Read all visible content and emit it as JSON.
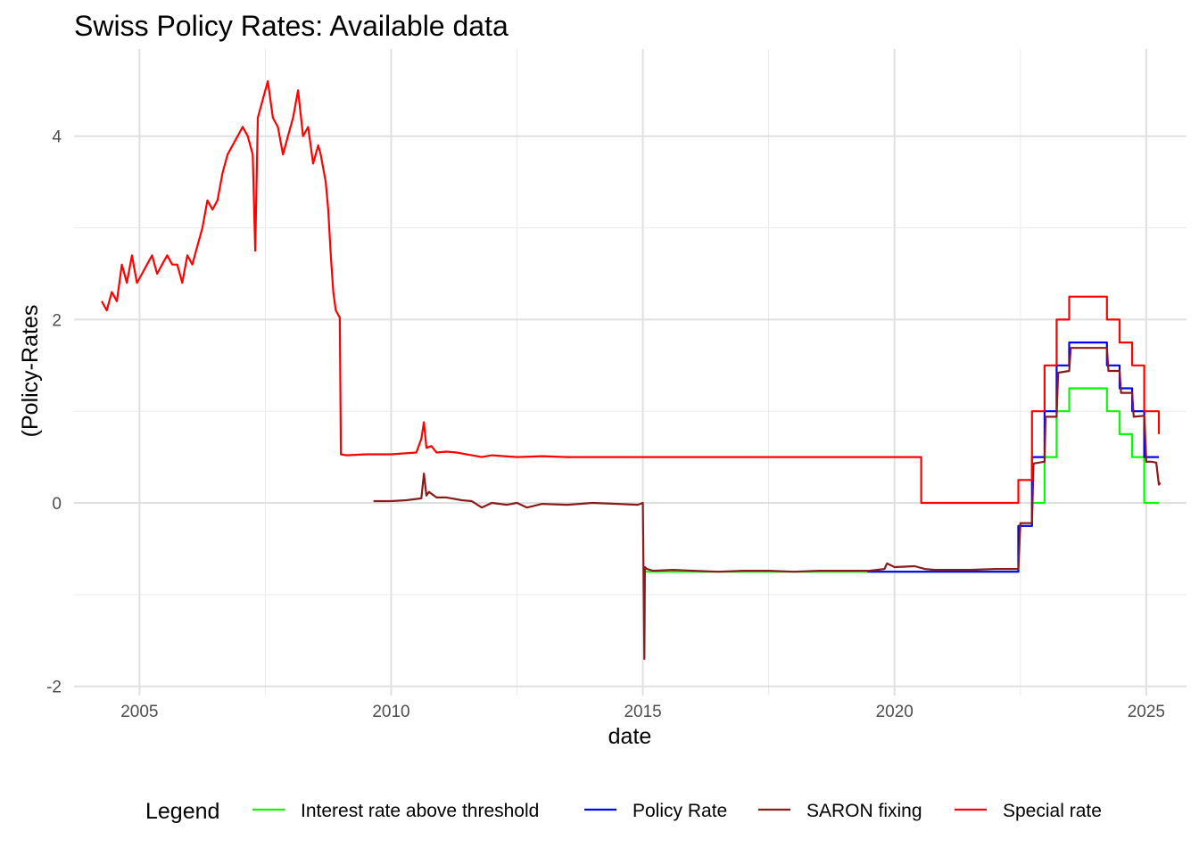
{
  "chart_data": {
    "type": "line",
    "title": "Swiss Policy Rates: Available data",
    "xlabel": "date",
    "ylabel": "(Policy-Rates",
    "xlim": [
      2003.7,
      2025.8
    ],
    "ylim": [
      -2.1,
      4.95
    ],
    "x_ticks": [
      2005,
      2010,
      2015,
      2020,
      2025
    ],
    "x_tick_labels": [
      "2005",
      "2010",
      "2015",
      "2020",
      "2025"
    ],
    "y_ticks": [
      -2,
      0,
      2,
      4
    ],
    "y_tick_labels": [
      "-2",
      "0",
      "2",
      "4"
    ],
    "grid": true,
    "legend": {
      "title": "Legend",
      "position": "bottom",
      "entries": [
        "Interest rate above threshold",
        "Policy Rate",
        "SARON fixing",
        "Special rate"
      ]
    },
    "series": [
      {
        "name": "Interest rate above threshold",
        "color": "#00ff00",
        "style": "step",
        "x": [
          2015.05,
          2022.46,
          2022.46,
          2022.73,
          2022.73,
          2022.98,
          2022.98,
          2023.22,
          2023.22,
          2023.47,
          2023.47,
          2024.22,
          2024.22,
          2024.47,
          2024.47,
          2024.72,
          2024.72,
          2024.96,
          2024.96,
          2025.25
        ],
        "y": [
          -0.75,
          -0.75,
          -0.25,
          -0.25,
          0.0,
          0.0,
          0.5,
          0.5,
          1.0,
          1.0,
          1.25,
          1.25,
          1.0,
          1.0,
          0.75,
          0.75,
          0.5,
          0.5,
          0.0,
          0.0
        ]
      },
      {
        "name": "Policy Rate",
        "color": "#0000ff",
        "style": "step",
        "x": [
          2019.46,
          2022.46,
          2022.46,
          2022.73,
          2022.73,
          2022.98,
          2022.98,
          2023.22,
          2023.22,
          2023.47,
          2023.47,
          2024.22,
          2024.22,
          2024.47,
          2024.47,
          2024.72,
          2024.72,
          2024.96,
          2024.96,
          2025.25
        ],
        "y": [
          -0.75,
          -0.75,
          -0.25,
          -0.25,
          0.5,
          0.5,
          1.0,
          1.0,
          1.5,
          1.5,
          1.75,
          1.75,
          1.5,
          1.5,
          1.25,
          1.25,
          1.0,
          1.0,
          0.5,
          0.5
        ]
      },
      {
        "name": "SARON fixing",
        "color": "#8b1a1a",
        "style": "line",
        "x": [
          2009.65,
          2010.0,
          2010.3,
          2010.6,
          2010.65,
          2010.7,
          2010.75,
          2010.9,
          2011.1,
          2011.4,
          2011.6,
          2011.8,
          2012.0,
          2012.3,
          2012.5,
          2012.7,
          2013.0,
          2013.5,
          2014.0,
          2014.5,
          2014.9,
          2015.0,
          2015.03,
          2015.04,
          2015.08,
          2015.2,
          2015.6,
          2016.0,
          2016.5,
          2017.0,
          2017.5,
          2018.0,
          2018.5,
          2019.0,
          2019.5,
          2019.8,
          2019.85,
          2020.0,
          2020.4,
          2020.6,
          2020.8,
          2021.0,
          2021.5,
          2022.0,
          2022.46,
          2022.5,
          2022.73,
          2022.76,
          2022.98,
          2023.0,
          2023.22,
          2023.25,
          2023.47,
          2023.5,
          2024.22,
          2024.25,
          2024.47,
          2024.5,
          2024.72,
          2024.75,
          2024.96,
          2025.0,
          2025.1,
          2025.2,
          2025.25,
          2025.28
        ],
        "y": [
          0.02,
          0.02,
          0.03,
          0.05,
          0.32,
          0.08,
          0.12,
          0.06,
          0.06,
          0.03,
          0.02,
          -0.05,
          0.0,
          -0.02,
          0.0,
          -0.05,
          -0.01,
          -0.02,
          0.0,
          -0.01,
          -0.02,
          0.0,
          -1.7,
          -0.7,
          -0.72,
          -0.74,
          -0.73,
          -0.74,
          -0.75,
          -0.74,
          -0.74,
          -0.75,
          -0.74,
          -0.74,
          -0.74,
          -0.72,
          -0.66,
          -0.7,
          -0.69,
          -0.72,
          -0.73,
          -0.73,
          -0.73,
          -0.72,
          -0.72,
          -0.22,
          -0.22,
          0.43,
          0.45,
          0.94,
          0.94,
          1.42,
          1.44,
          1.69,
          1.69,
          1.44,
          1.44,
          1.2,
          1.2,
          0.94,
          0.95,
          0.45,
          0.45,
          0.44,
          0.2,
          0.22
        ]
      },
      {
        "name": "Special rate",
        "color": "#ff0000",
        "style": "line",
        "x": [
          2004.25,
          2004.35,
          2004.45,
          2004.55,
          2004.65,
          2004.75,
          2004.85,
          2004.95,
          2005.05,
          2005.15,
          2005.25,
          2005.35,
          2005.45,
          2005.55,
          2005.65,
          2005.75,
          2005.85,
          2005.95,
          2006.05,
          2006.15,
          2006.25,
          2006.35,
          2006.45,
          2006.55,
          2006.65,
          2006.75,
          2006.85,
          2006.95,
          2007.05,
          2007.15,
          2007.25,
          2007.3,
          2007.35,
          2007.45,
          2007.55,
          2007.65,
          2007.75,
          2007.85,
          2007.95,
          2008.05,
          2008.15,
          2008.25,
          2008.35,
          2008.45,
          2008.55,
          2008.6,
          2008.7,
          2008.75,
          2008.8,
          2008.85,
          2008.9,
          2008.95,
          2008.98,
          2009.0,
          2009.1,
          2009.5,
          2010.0,
          2010.5,
          2010.6,
          2010.65,
          2010.7,
          2010.8,
          2010.9,
          2011.1,
          2011.3,
          2011.6,
          2011.8,
          2012.0,
          2012.5,
          2013.0,
          2013.5,
          2014.0,
          2015.0,
          2016.0,
          2017.0,
          2018.0,
          2019.0,
          2020.0,
          2020.53,
          2020.53,
          2022.46,
          2022.46,
          2022.73,
          2022.73,
          2022.98,
          2022.98,
          2023.22,
          2023.22,
          2023.47,
          2023.47,
          2024.22,
          2024.22,
          2024.47,
          2024.47,
          2024.72,
          2024.72,
          2024.96,
          2024.96,
          2025.25,
          2025.25
        ],
        "y": [
          2.2,
          2.1,
          2.3,
          2.2,
          2.6,
          2.4,
          2.7,
          2.4,
          2.5,
          2.6,
          2.7,
          2.5,
          2.6,
          2.7,
          2.6,
          2.6,
          2.4,
          2.7,
          2.6,
          2.8,
          3.0,
          3.3,
          3.2,
          3.3,
          3.6,
          3.8,
          3.9,
          4.0,
          4.1,
          4.0,
          3.8,
          2.75,
          4.2,
          4.4,
          4.6,
          4.2,
          4.1,
          3.8,
          4.0,
          4.2,
          4.5,
          4.0,
          4.1,
          3.7,
          3.9,
          3.8,
          3.5,
          3.2,
          2.7,
          2.3,
          2.1,
          2.05,
          2.02,
          0.53,
          0.52,
          0.53,
          0.53,
          0.55,
          0.7,
          0.88,
          0.6,
          0.62,
          0.55,
          0.56,
          0.55,
          0.52,
          0.5,
          0.52,
          0.5,
          0.51,
          0.5,
          0.5,
          0.5,
          0.5,
          0.5,
          0.5,
          0.5,
          0.5,
          0.5,
          0.0,
          0.0,
          0.25,
          0.25,
          1.0,
          1.0,
          1.5,
          1.5,
          2.0,
          2.0,
          2.25,
          2.25,
          2.0,
          2.0,
          1.75,
          1.75,
          1.5,
          1.5,
          1.0,
          1.0,
          0.75
        ]
      }
    ]
  }
}
